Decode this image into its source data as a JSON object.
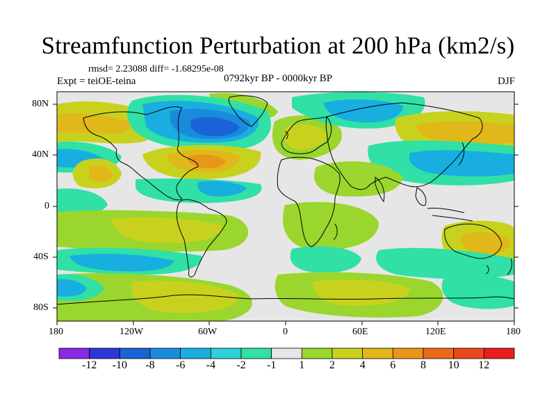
{
  "title": "Streamfunction Perturbation at 200 hPa (km2/s)",
  "stats": "rmsd= 2.23088 diff= -1.68295e-08",
  "left_label": "Expt = teiOE-teina",
  "center_label": "0792kyr BP - 0000kyr BP",
  "right_label": "DJF",
  "lat_labels": [
    "80N",
    "40N",
    "0",
    "40S",
    "80S"
  ],
  "lon_labels": [
    "180",
    "120W",
    "60W",
    "0",
    "60E",
    "120E",
    "180"
  ],
  "colorbar": {
    "colors": [
      "#8a2be2",
      "#2d37d8",
      "#1a63d6",
      "#1a8bdc",
      "#19aee0",
      "#2cd2d7",
      "#30e0a6",
      "#e6e6e6",
      "#9ad62e",
      "#c8d21e",
      "#e0b81a",
      "#e8961a",
      "#ea6a1a",
      "#e8481c",
      "#e81e1e"
    ],
    "labels": [
      "-12",
      "-10",
      "-8",
      "-6",
      "-4",
      "-2",
      "-1",
      "1",
      "2",
      "4",
      "6",
      "8",
      "10",
      "12"
    ]
  },
  "chart_data": {
    "type": "heatmap",
    "title": "Streamfunction Perturbation at 200 hPa (km2/s)",
    "variable": "Streamfunction Perturbation at 200 hPa",
    "units": "km2/s",
    "experiment": "teiOE-teina",
    "period": "0792kyr BP - 0000kyr BP",
    "season": "DJF",
    "x_range": [
      -180,
      180
    ],
    "y_range": [
      -90,
      90
    ],
    "contour_levels": [
      -12,
      -10,
      -8,
      -6,
      -4,
      -2,
      -1,
      1,
      2,
      4,
      6,
      8,
      10,
      12
    ]
  }
}
